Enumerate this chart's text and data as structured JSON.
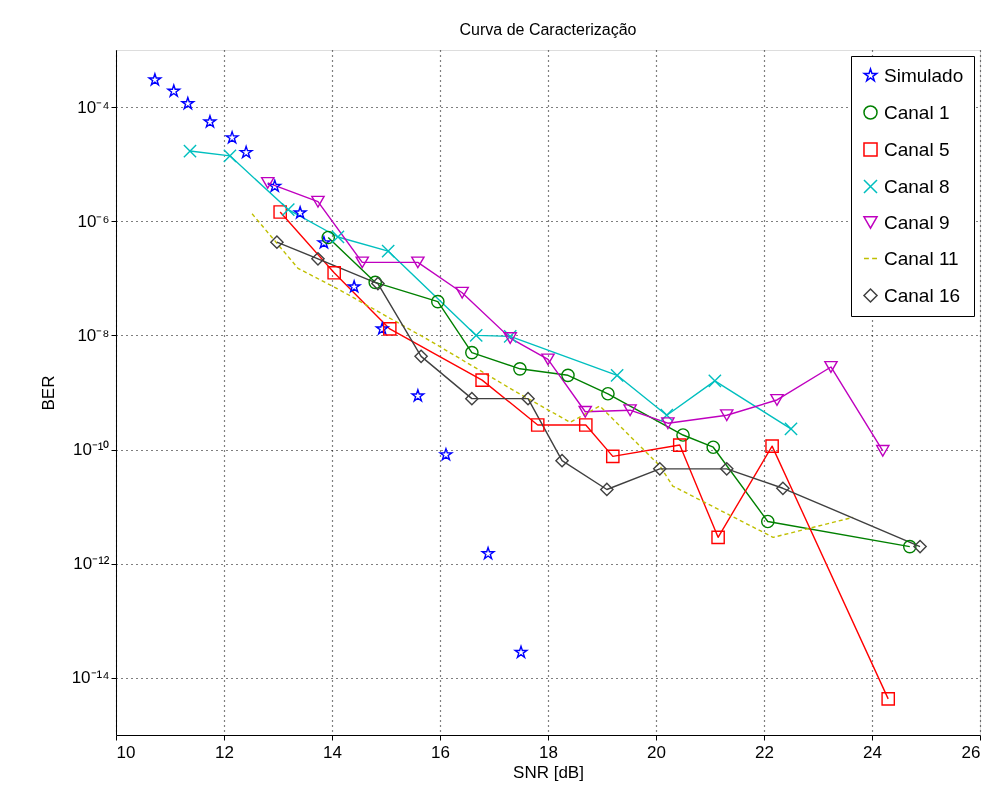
{
  "chart_data": {
    "type": "line",
    "title": "Curva de Caracterização",
    "xlabel": "SNR [dB]",
    "ylabel": "BER",
    "log": "y",
    "grid": true,
    "legend": "top right",
    "xlim": [
      10,
      26
    ],
    "xticks": [
      10,
      12,
      14,
      16,
      18,
      20,
      22,
      24,
      26
    ],
    "ylim": [
      1e-15,
      0.001
    ],
    "yticks": [
      {
        "value": 1e-14,
        "label": "10⁻¹⁴"
      },
      {
        "value": 1e-12,
        "label": "10⁻¹²"
      },
      {
        "value": 1e-10,
        "label": "10⁻¹⁰"
      },
      {
        "value": 1e-08,
        "label": "10⁻⁸"
      },
      {
        "value": 1e-06,
        "label": "10⁻⁶"
      },
      {
        "value": 0.0001,
        "label": "10⁻⁴"
      }
    ],
    "series": [
      {
        "name": "Simulado",
        "type": "scatter",
        "color": "#0000ff",
        "marker": "star",
        "x": [
          10.72,
          11.07,
          11.33,
          11.74,
          12.15,
          12.41,
          12.94,
          13.41,
          13.85,
          14.41,
          14.93,
          15.59,
          16.11,
          16.89,
          17.5
        ],
        "values": [
          0.0003,
          0.00019,
          0.000115,
          5.5e-05,
          2.9e-05,
          1.6e-05,
          4.1e-06,
          1.4e-06,
          4.2e-07,
          7.1e-08,
          1.3e-08,
          8.7e-10,
          8.1e-11,
          1.5e-12,
          2.8e-14
        ]
      },
      {
        "name": "Canal 1",
        "color": "#008000",
        "marker": "circle",
        "line_style": "solid",
        "x": [
          13.93,
          14.8,
          15.96,
          16.59,
          17.48,
          18.37,
          19.11,
          20.5,
          21.06,
          22.07,
          24.7
        ],
        "values": [
          5.2e-07,
          8.5e-08,
          3.9e-08,
          5e-09,
          2.6e-09,
          2e-09,
          9.5e-10,
          1.8e-10,
          1.1e-10,
          5.5e-12,
          2e-12
        ]
      },
      {
        "name": "Canal 5",
        "color": "#ff0000",
        "marker": "square",
        "line_style": "solid",
        "x": [
          13.04,
          14.04,
          15.07,
          16.78,
          17.81,
          18.7,
          19.2,
          20.44,
          21.15,
          22.15,
          24.3
        ],
        "values": [
          1.45e-06,
          1.25e-07,
          1.3e-08,
          1.65e-09,
          2.7e-10,
          2.7e-10,
          7.6e-11,
          1.2e-10,
          2.9e-12,
          1.15e-10,
          4.3e-15
        ]
      },
      {
        "name": "Canal 8",
        "color": "#00bfbf",
        "marker": "cross",
        "line_style": "solid",
        "x": [
          11.37,
          12.11,
          13.19,
          14.11,
          15.04,
          16.67,
          17.3,
          19.28,
          20.2,
          21.09,
          22.5
        ],
        "values": [
          1.7e-05,
          1.4e-05,
          1.6e-06,
          5.3e-07,
          3e-07,
          1e-08,
          9.6e-09,
          2e-09,
          4e-10,
          1.6e-09,
          2.3e-10
        ]
      },
      {
        "name": "Canal 9",
        "color": "#bf00bf",
        "marker": "triangle",
        "line_style": "solid",
        "x": [
          12.81,
          13.74,
          14.56,
          15.59,
          16.41,
          17.3,
          18.0,
          18.69,
          19.52,
          20.22,
          21.31,
          22.24,
          23.24,
          24.2
        ],
        "values": [
          4.7e-06,
          2.2e-06,
          1.9e-07,
          1.9e-07,
          5.6e-08,
          9e-09,
          3.8e-09,
          4.6e-10,
          4.9e-10,
          2.9e-10,
          4e-10,
          7.4e-10,
          2.8e-09,
          9.5e-11
        ]
      },
      {
        "name": "Canal 11",
        "color": "#bfbf00",
        "marker": "none",
        "line_style": "dashed",
        "x": [
          12.52,
          13.37,
          14.15,
          15.81,
          17.39,
          18.41,
          18.96,
          20.07,
          20.31,
          22.17,
          23.65
        ],
        "values": [
          1.35e-06,
          1.5e-07,
          6.2e-08,
          8.1e-09,
          1.05e-09,
          3e-10,
          5.8e-10,
          5.2e-11,
          2.3e-11,
          2.9e-12,
          6.5e-12
        ]
      },
      {
        "name": "Canal 16",
        "color": "#404040",
        "marker": "diamond",
        "line_style": "solid",
        "x": [
          12.98,
          13.74,
          14.85,
          15.65,
          16.59,
          17.63,
          18.26,
          19.09,
          20.07,
          21.31,
          22.35,
          24.89
        ],
        "values": [
          4.3e-07,
          2.2e-07,
          8.1e-08,
          4.3e-09,
          7.8e-10,
          7.8e-10,
          6.4e-11,
          2e-11,
          4.6e-11,
          4.6e-11,
          2.1e-11,
          2e-12
        ]
      }
    ]
  }
}
